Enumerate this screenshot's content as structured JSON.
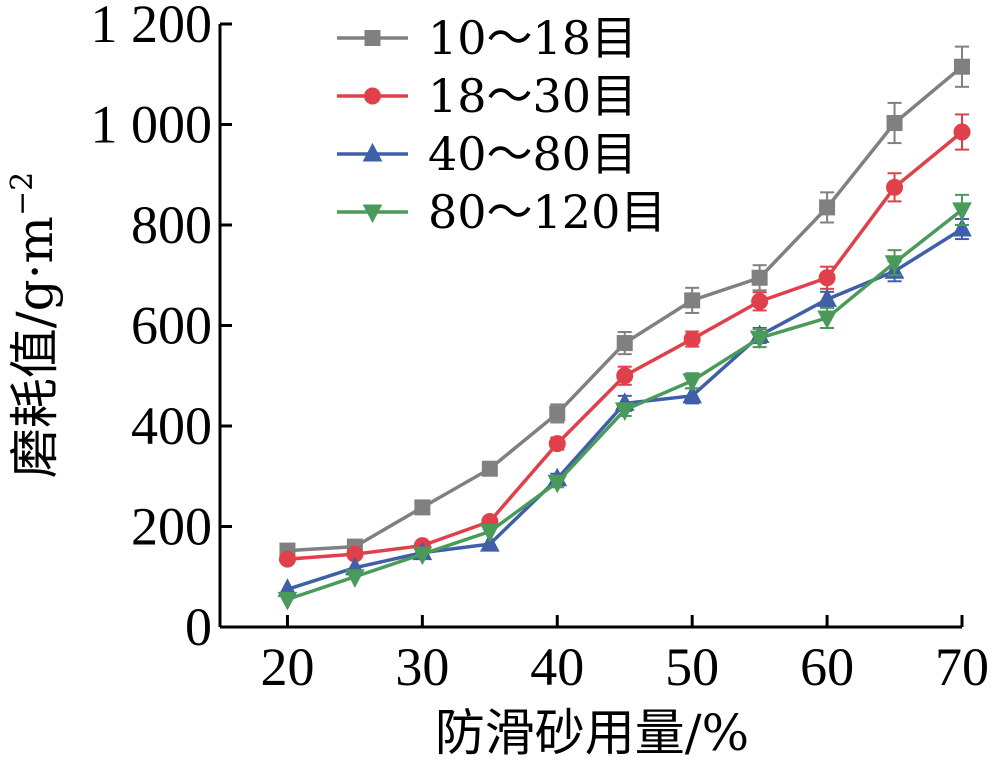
{
  "chart_data": {
    "type": "line",
    "title": "",
    "xlabel": "防滑砂用量/%",
    "ylabel": "磨耗值/g·m",
    "ylabel_sup": "−2",
    "x": [
      20,
      25,
      30,
      35,
      40,
      45,
      50,
      55,
      60,
      65,
      70
    ],
    "xlim": [
      15,
      70
    ],
    "ylim": [
      0,
      1200
    ],
    "x_ticks": [
      20,
      30,
      40,
      50,
      60,
      70
    ],
    "y_ticks": [
      0,
      200,
      400,
      600,
      800,
      1000,
      1200
    ],
    "y_tick_labels": [
      "0",
      "200",
      "400",
      "600",
      "800",
      "1 000",
      "1 200"
    ],
    "x_tick_labels": [
      "20",
      "30",
      "40",
      "50",
      "60",
      "70"
    ],
    "legend_position": "top-left",
    "grid": false,
    "series": [
      {
        "name": "10～18目",
        "color": "#808080",
        "marker": "square",
        "values": [
          152,
          160,
          238,
          315,
          425,
          565,
          650,
          695,
          835,
          1003,
          1115
        ],
        "errors": [
          0,
          0,
          0,
          0,
          18,
          22,
          25,
          25,
          30,
          40,
          40
        ]
      },
      {
        "name": "18～30目",
        "color": "#e0404a",
        "marker": "circle",
        "values": [
          135,
          145,
          162,
          210,
          365,
          500,
          573,
          648,
          695,
          875,
          985
        ],
        "errors": [
          0,
          0,
          0,
          0,
          12,
          18,
          15,
          18,
          22,
          28,
          35
        ]
      },
      {
        "name": "40～80目",
        "color": "#3f5fa8",
        "marker": "triangle-up",
        "values": [
          75,
          118,
          148,
          165,
          295,
          445,
          460,
          580,
          652,
          708,
          792
        ],
        "errors": [
          0,
          0,
          0,
          0,
          10,
          15,
          15,
          15,
          15,
          20,
          20
        ]
      },
      {
        "name": "80～120目",
        "color": "#4a9a5a",
        "marker": "triangle-down",
        "values": [
          55,
          100,
          145,
          190,
          288,
          432,
          490,
          575,
          615,
          725,
          830
        ],
        "errors": [
          0,
          0,
          0,
          0,
          10,
          12,
          15,
          18,
          20,
          25,
          30
        ]
      }
    ]
  }
}
